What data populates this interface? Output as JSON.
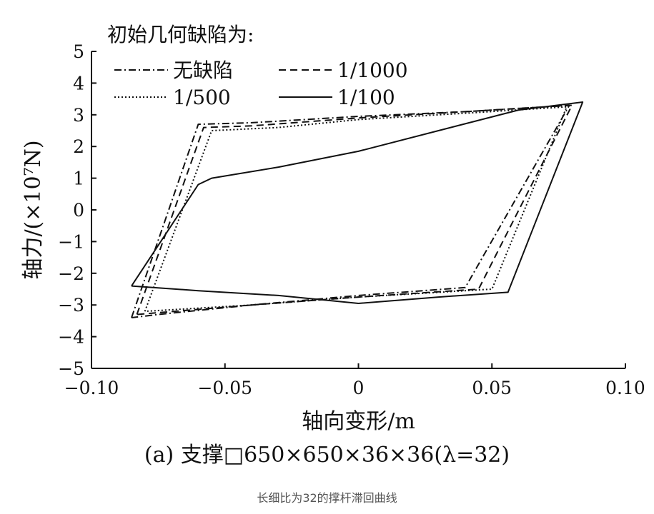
{
  "chart_data": {
    "type": "line",
    "xlabel": "轴向变形/m",
    "ylabel": "轴力/(×10⁷N)",
    "xlim": [
      -0.1,
      0.1
    ],
    "ylim": [
      -5,
      5
    ],
    "xticks": [
      -0.1,
      -0.05,
      0,
      0.05,
      0.1
    ],
    "xtick_labels": [
      "−0.10",
      "−0.05",
      "0",
      "0.05",
      "0.10"
    ],
    "yticks": [
      5,
      4,
      3,
      2,
      1,
      0,
      -1,
      -2,
      -3,
      -4,
      -5
    ],
    "ytick_labels": [
      "5",
      "4",
      "3",
      "2",
      "1",
      "0",
      "−1",
      "−2",
      "−3",
      "−4",
      "−5"
    ],
    "legend_title": "初始几何缺陷为:",
    "legend_position": "top-left",
    "grid": false,
    "subtitle": "(a) 支撑□650×650×36×36(λ=32)",
    "series": [
      {
        "name": "无缺陷",
        "style": "dashdot",
        "points": [
          [
            -0.085,
            -3.4
          ],
          [
            -0.06,
            2.7
          ],
          [
            -0.04,
            2.75
          ],
          [
            0.0,
            2.95
          ],
          [
            0.04,
            3.1
          ],
          [
            0.079,
            3.3
          ],
          [
            0.04,
            -2.45
          ],
          [
            0.0,
            -2.7
          ],
          [
            -0.04,
            -3.0
          ],
          [
            -0.075,
            -3.3
          ],
          [
            -0.085,
            -3.4
          ]
        ]
      },
      {
        "name": "1/1000",
        "style": "dashed",
        "points": [
          [
            -0.083,
            -3.3
          ],
          [
            -0.058,
            2.6
          ],
          [
            -0.04,
            2.65
          ],
          [
            0.0,
            2.9
          ],
          [
            0.04,
            3.1
          ],
          [
            0.08,
            3.3
          ],
          [
            0.045,
            -2.5
          ],
          [
            0.0,
            -2.75
          ],
          [
            -0.04,
            -3.0
          ],
          [
            -0.083,
            -3.3
          ]
        ]
      },
      {
        "name": "1/500",
        "style": "dotted",
        "points": [
          [
            -0.08,
            -3.2
          ],
          [
            -0.055,
            2.5
          ],
          [
            -0.03,
            2.6
          ],
          [
            0.0,
            2.85
          ],
          [
            0.04,
            3.05
          ],
          [
            0.078,
            3.25
          ],
          [
            0.05,
            -2.5
          ],
          [
            0.0,
            -2.75
          ],
          [
            -0.04,
            -3.0
          ],
          [
            -0.08,
            -3.2
          ]
        ]
      },
      {
        "name": "1/100",
        "style": "solid",
        "points": [
          [
            -0.085,
            -2.4
          ],
          [
            -0.06,
            0.8
          ],
          [
            -0.055,
            1.0
          ],
          [
            -0.03,
            1.35
          ],
          [
            0.0,
            1.85
          ],
          [
            0.03,
            2.5
          ],
          [
            0.06,
            3.15
          ],
          [
            0.084,
            3.4
          ],
          [
            0.056,
            -2.6
          ],
          [
            0.03,
            -2.75
          ],
          [
            0.0,
            -2.95
          ],
          [
            -0.03,
            -2.7
          ],
          [
            -0.06,
            -2.55
          ],
          [
            -0.085,
            -2.4
          ]
        ]
      }
    ]
  },
  "caption": "长细比为32的撑杆滞回曲线"
}
